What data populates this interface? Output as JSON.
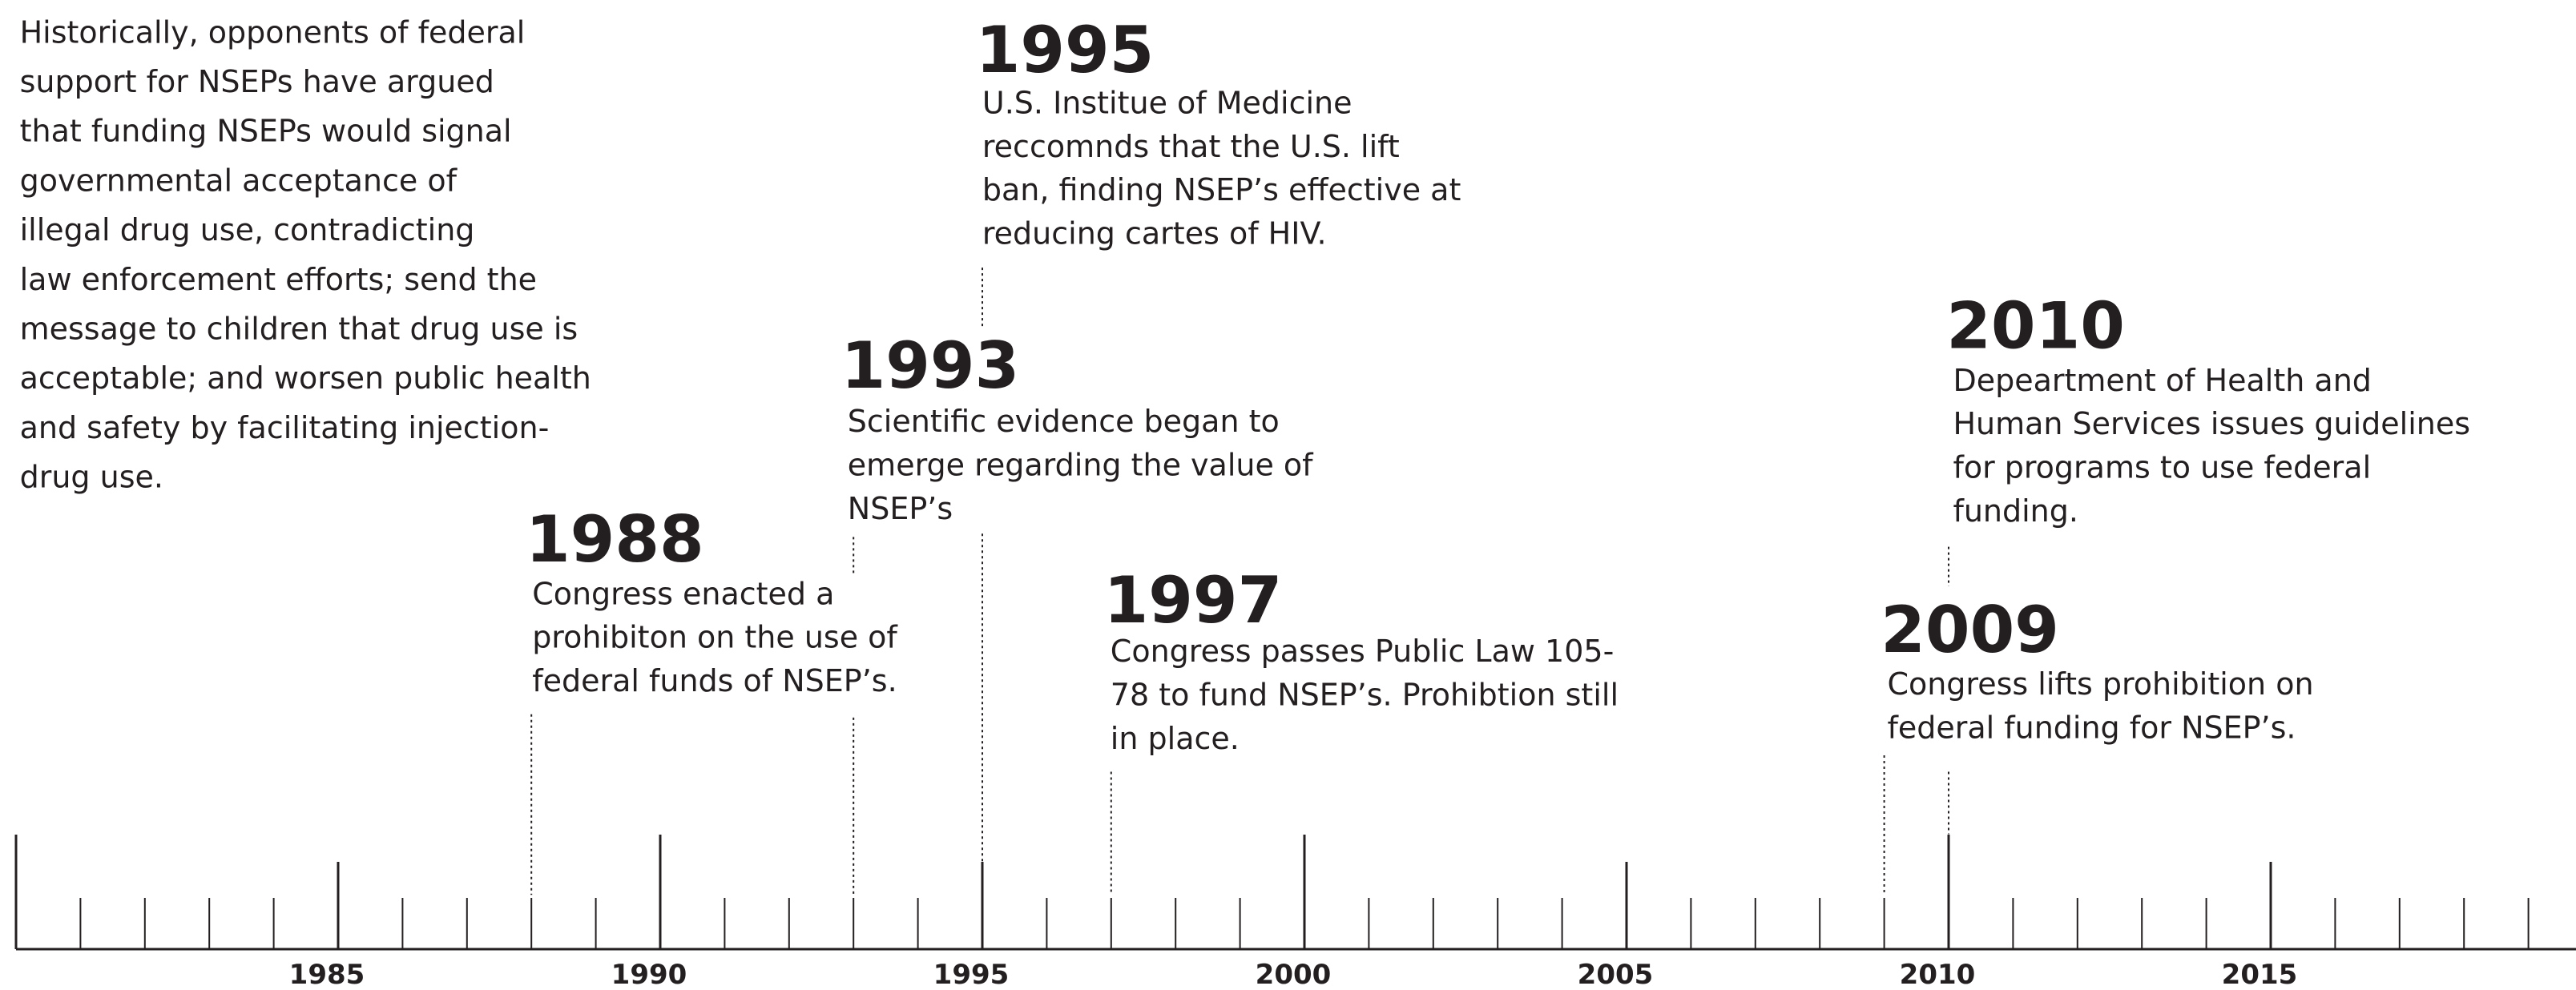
{
  "intro": [
    "Historically, opponents of federal",
    "support for NSEPs have argued",
    "that funding NSEPs would signal",
    "governmental acceptance of",
    "illegal drug use, contradicting",
    "law enforcement efforts; send the",
    "message to children that drug use is",
    "acceptable; and worsen public health",
    "and safety by facilitating injection-",
    "drug use."
  ],
  "events": [
    {
      "year": 1988,
      "text": [
        "Congress enacted a",
        "prohibiton on the use of",
        "federal funds of NSEP’s."
      ]
    },
    {
      "year": 1993,
      "text": [
        "Scientific evidence began to",
        "emerge regarding the value of",
        "NSEP’s"
      ]
    },
    {
      "year": 1995,
      "text": [
        "U.S. Institue of Medicine",
        "reccomnds that the U.S. lift",
        "ban, finding NSEP’s effective at",
        "reducing cartes of HIV."
      ]
    },
    {
      "year": 1997,
      "text": [
        "Congress passes Public Law 105-",
        "78 to fund NSEP’s. Prohibtion still",
        "in place."
      ]
    },
    {
      "year": 2009,
      "text": [
        "Congress lifts prohibition on",
        "federal funding for NSEP’s."
      ]
    },
    {
      "year": 2010,
      "text": [
        "Depeartment of Health and",
        "Human Services issues guidelines",
        "for programs to use federal",
        "funding."
      ]
    }
  ],
  "axis": {
    "xlim": [
      1980,
      2020
    ],
    "xticks": [
      1985,
      1990,
      1995,
      2000,
      2005,
      2010,
      2015
    ]
  }
}
